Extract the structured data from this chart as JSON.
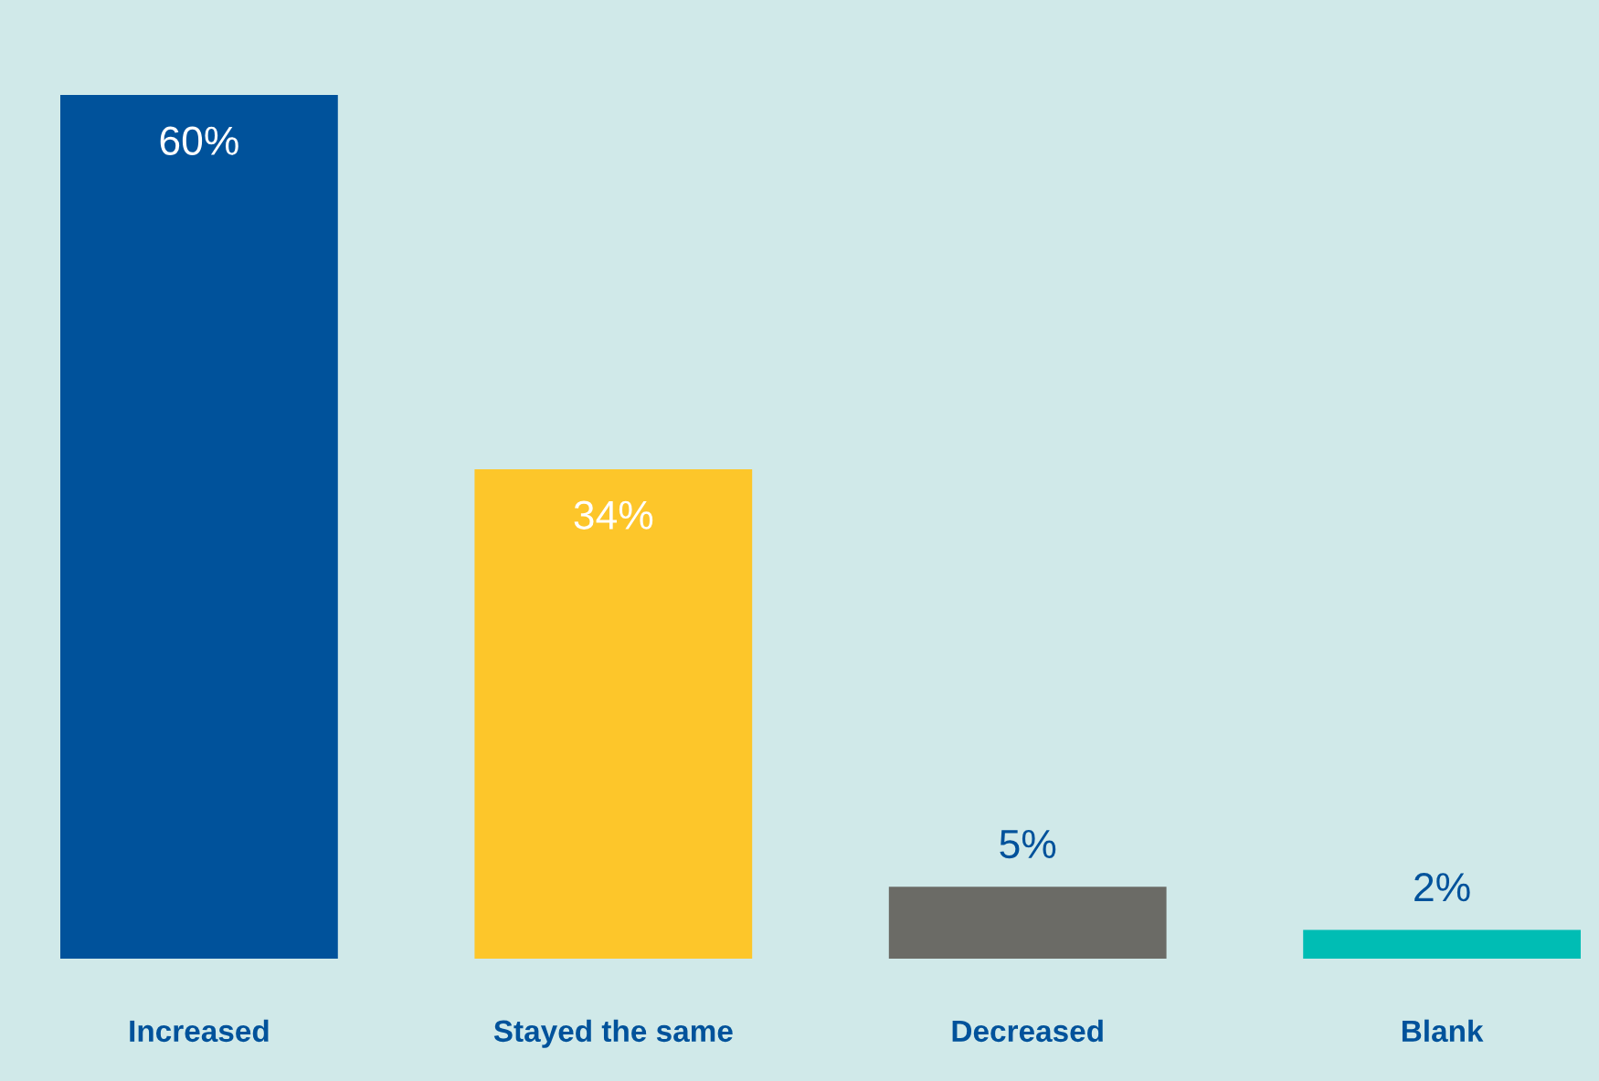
{
  "chart_data": {
    "type": "bar",
    "categories": [
      "Increased",
      "Stayed the same",
      "Decreased",
      "Blank"
    ],
    "values": [
      60,
      34,
      5,
      2
    ],
    "colors": [
      "#00529b",
      "#fdc62a",
      "#6b6b66",
      "#00bdb4"
    ],
    "value_labels": [
      "60%",
      "34%",
      "5%",
      "2%"
    ],
    "grid": false,
    "legend": false
  }
}
